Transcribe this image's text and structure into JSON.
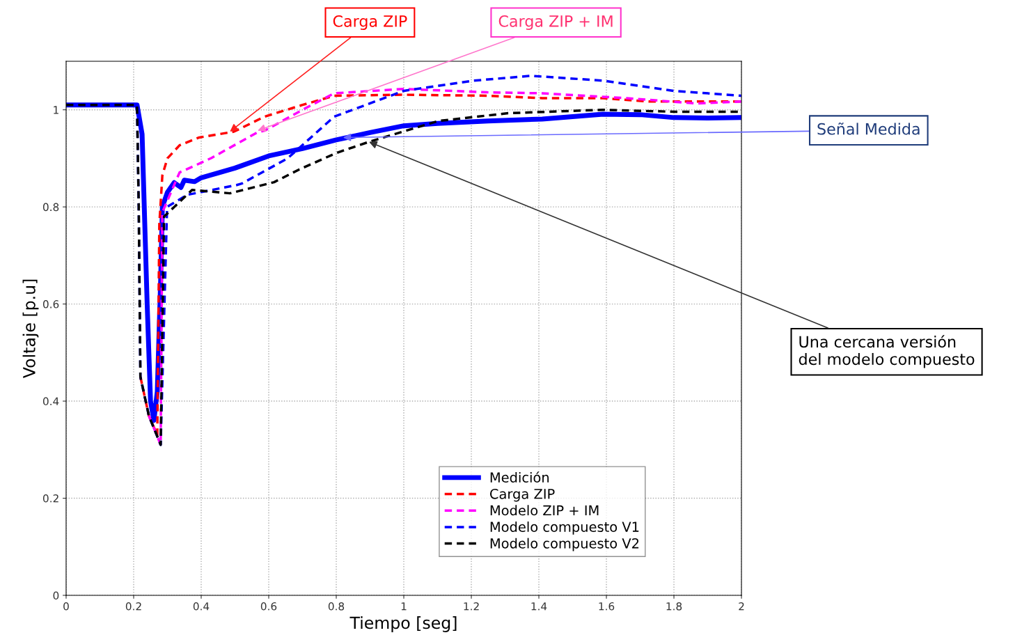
{
  "chart_data": {
    "type": "line",
    "xlabel": "Tiempo [seg]",
    "ylabel": "Voltaje [p.u]",
    "xlim": [
      0,
      2
    ],
    "ylim": [
      0,
      1.1
    ],
    "xticks": [
      0,
      0.2,
      0.4,
      0.6,
      0.8,
      1,
      1.2,
      1.4,
      1.6,
      1.8,
      2
    ],
    "yticks": [
      0,
      0.2,
      0.4,
      0.6,
      0.8,
      1
    ],
    "grid": true,
    "legend": "bottom",
    "line_style": "dashed",
    "marker": "none",
    "series": [
      {
        "name": "Medición",
        "color": "#0000ff",
        "line_style": "solid",
        "x": [
          0,
          0.21,
          0.225,
          0.24,
          0.25,
          0.26,
          0.27,
          0.28,
          0.285,
          0.3,
          0.32,
          0.34,
          0.35,
          0.38,
          0.4,
          0.45,
          0.5,
          0.6,
          0.7,
          0.8,
          0.9,
          1.0,
          1.1,
          1.25,
          1.41,
          1.59,
          1.7,
          1.8,
          1.9,
          2.0
        ],
        "values": [
          1.01,
          1.01,
          0.95,
          0.6,
          0.4,
          0.36,
          0.42,
          0.65,
          0.8,
          0.83,
          0.85,
          0.84,
          0.855,
          0.852,
          0.86,
          0.87,
          0.88,
          0.905,
          0.92,
          0.938,
          0.953,
          0.967,
          0.972,
          0.977,
          0.981,
          0.991,
          0.99,
          0.984,
          0.983,
          0.984
        ]
      },
      {
        "name": "Carga ZIP",
        "color": "#ff0000",
        "x": [
          0.22,
          0.245,
          0.27,
          0.276,
          0.285,
          0.3,
          0.336,
          0.394,
          0.497,
          0.588,
          0.7,
          0.794,
          1.0,
          1.247,
          1.41,
          1.59,
          1.73,
          2.0
        ],
        "values": [
          0.45,
          0.37,
          0.33,
          0.764,
          0.865,
          0.9,
          0.927,
          0.943,
          0.955,
          0.986,
          1.01,
          1.029,
          1.031,
          1.029,
          1.024,
          1.024,
          1.017,
          1.017
        ]
      },
      {
        "name": "Modelo ZIP + IM",
        "color": "#ff00ff",
        "x": [
          0.245,
          0.28,
          0.285,
          0.336,
          0.381,
          0.431,
          0.565,
          0.588,
          0.7,
          0.794,
          1.0,
          1.247,
          1.41,
          1.66,
          1.866,
          2.0
        ],
        "values": [
          0.37,
          0.31,
          0.789,
          0.871,
          0.885,
          0.901,
          0.953,
          0.957,
          1.0,
          1.034,
          1.043,
          1.036,
          1.034,
          1.024,
          1.013,
          1.017
        ]
      },
      {
        "name": "Modelo compuesto V1",
        "color": "#0000ff",
        "x": [
          0,
          0.21,
          0.215,
          0.22,
          0.245,
          0.28,
          0.299,
          0.359,
          0.505,
          0.52,
          0.656,
          0.794,
          1.0,
          1.206,
          1.377,
          1.59,
          1.8,
          2.0
        ],
        "values": [
          1.01,
          1.01,
          0.8,
          0.45,
          0.37,
          0.31,
          0.8,
          0.825,
          0.845,
          0.848,
          0.9,
          0.986,
          1.039,
          1.06,
          1.07,
          1.06,
          1.039,
          1.029
        ]
      },
      {
        "name": "Modelo compuesto V2",
        "color": "#000000",
        "x": [
          0,
          0.21,
          0.215,
          0.22,
          0.245,
          0.28,
          0.29,
          0.373,
          0.485,
          0.616,
          0.69,
          0.8,
          0.897,
          1.103,
          1.309,
          1.59,
          1.8,
          2.0
        ],
        "values": [
          1.01,
          1.01,
          0.8,
          0.45,
          0.37,
          0.31,
          0.78,
          0.835,
          0.828,
          0.851,
          0.877,
          0.911,
          0.934,
          0.977,
          0.993,
          1.0,
          0.996,
          0.996
        ]
      }
    ],
    "annotations": [
      {
        "text": "Carga ZIP",
        "x": 0.485,
        "y": 0.955
      },
      {
        "text": "Carga ZIP + IM",
        "x": 0.567,
        "y": 0.957
      },
      {
        "text": "Señal Medida",
        "x": 0.82,
        "y": 0.943
      },
      {
        "text": "Una cercana versión\ndel modelo compuesto",
        "x": 0.897,
        "y": 0.934
      }
    ]
  }
}
